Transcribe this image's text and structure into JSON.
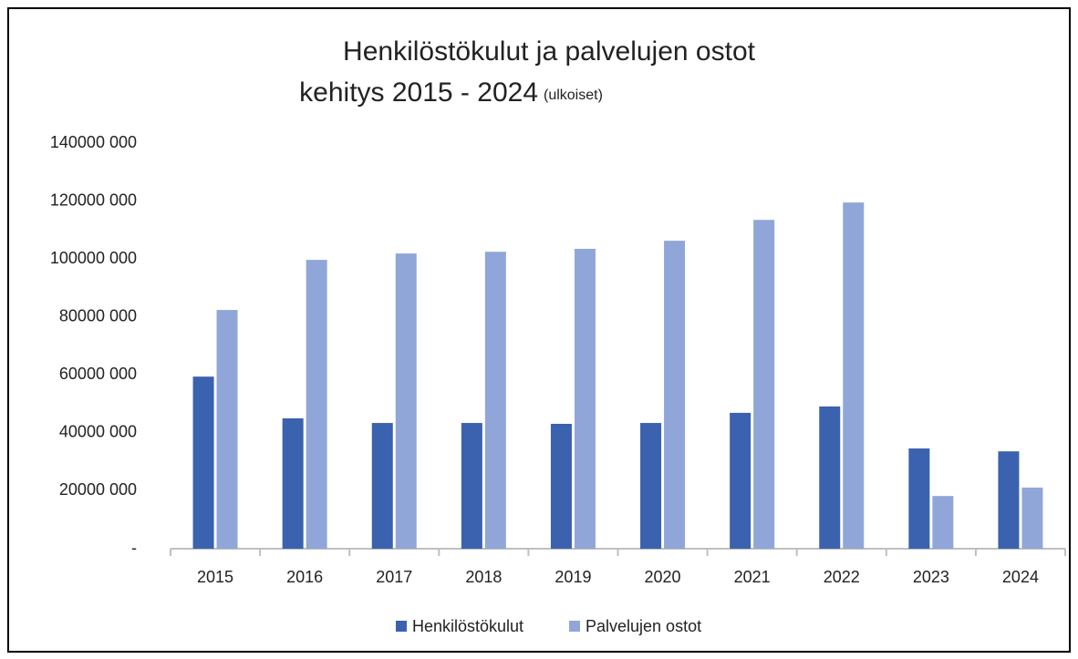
{
  "chart_data": {
    "type": "bar",
    "title": [
      "Henkilöstökulut ja palvelujen ostot",
      "kehitys 2015 - 2024"
    ],
    "subtitle": "(ulkoiset)",
    "categories": [
      "2015",
      "2016",
      "2017",
      "2018",
      "2019",
      "2020",
      "2021",
      "2022",
      "2023",
      "2024"
    ],
    "series": [
      {
        "name": "Henkilöstökulut",
        "color": "#3a62ae",
        "values": [
          59400000,
          45000000,
          43400000,
          43400000,
          43100000,
          43400000,
          46900000,
          49100000,
          34600000,
          33600000
        ]
      },
      {
        "name": "Palvelujen ostot",
        "color": "#91a6d8",
        "values": [
          82400000,
          99700000,
          101900000,
          102500000,
          103500000,
          106300000,
          113500000,
          119500000,
          18200000,
          21100000
        ]
      }
    ],
    "ylim": [
      0,
      140000000
    ],
    "yticks": [
      {
        "value": 0,
        "label": "-"
      },
      {
        "value": 20000000,
        "label": "20000 000"
      },
      {
        "value": 40000000,
        "label": "40000 000"
      },
      {
        "value": 60000000,
        "label": "60000 000"
      },
      {
        "value": 80000000,
        "label": "80000 000"
      },
      {
        "value": 100000000,
        "label": "100000 000"
      },
      {
        "value": 120000000,
        "label": "120000 000"
      },
      {
        "value": 140000000,
        "label": "140000 000"
      }
    ],
    "grid": false,
    "legend": "bottom"
  }
}
